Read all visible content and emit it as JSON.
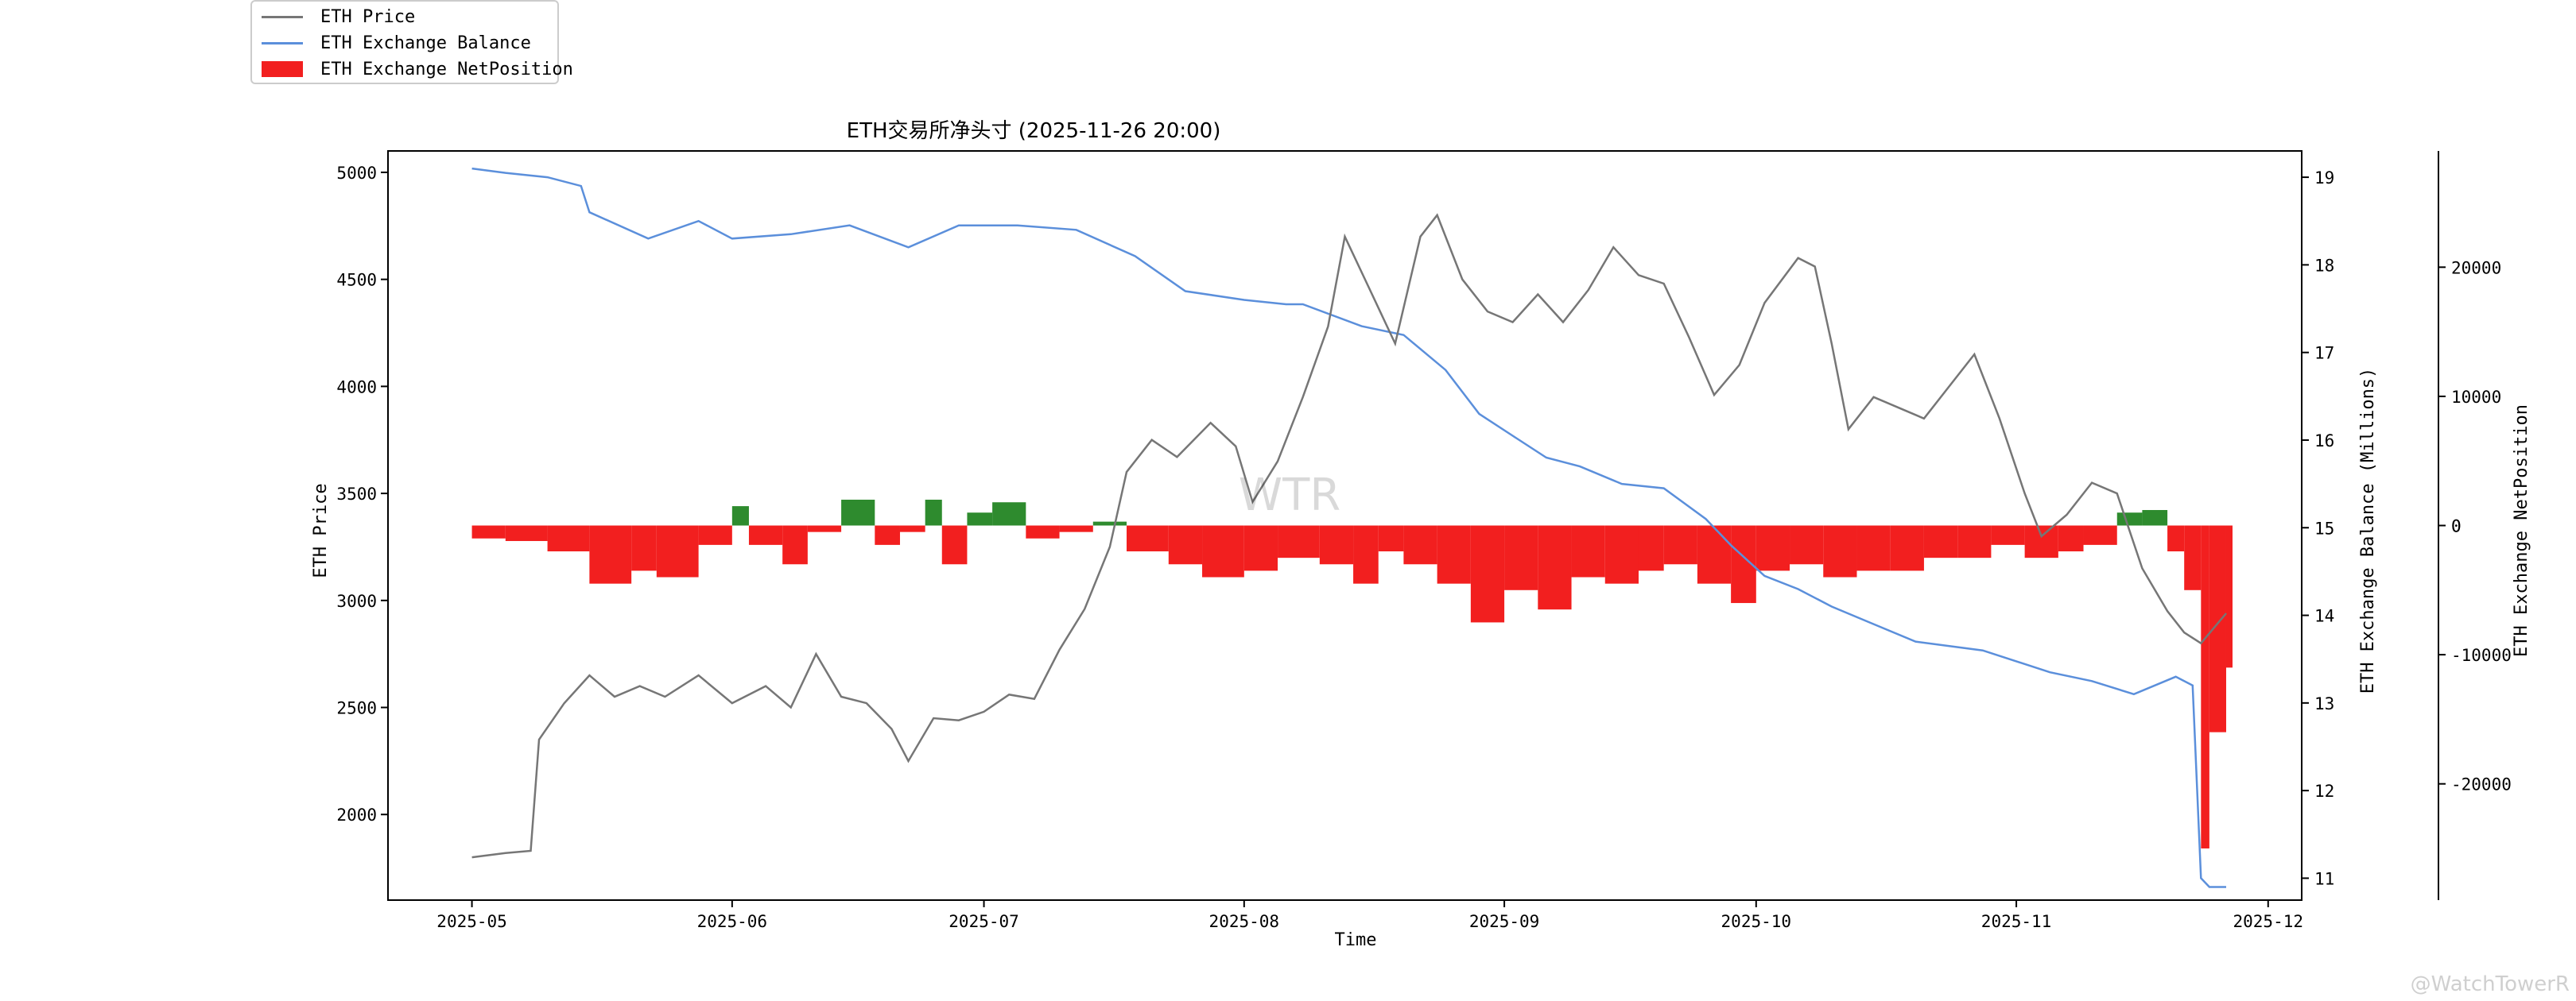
{
  "chart_data": {
    "type": "line",
    "title": "ETH交易所净头寸 (2025-11-26 20:00)",
    "xlabel": "Time",
    "ylabel_left": "ETH Price",
    "ylabel_right1": "ETH Exchange Balance (Millions)",
    "ylabel_right2": "ETH Exchange NetPosition",
    "x_tick_labels": [
      "2025-05",
      "2025-06",
      "2025-07",
      "2025-08",
      "2025-09",
      "2025-10",
      "2025-11",
      "2025-12"
    ],
    "y_left_ticks": [
      2000,
      2500,
      3000,
      3500,
      4000,
      4500,
      5000
    ],
    "y_left_lim": [
      1600,
      5100
    ],
    "y_right1_ticks": [
      11,
      12,
      13,
      14,
      15,
      16,
      17,
      18,
      19
    ],
    "y_right1_lim": [
      10.75,
      19.3
    ],
    "y_right2_ticks": [
      -20000,
      -10000,
      0,
      10000,
      20000
    ],
    "y_right2_lim": [
      -29000,
      29000
    ],
    "x_lim": [
      "2025-04-21",
      "2025-12-05"
    ],
    "watermark": "WTR",
    "footer_watermark": "@WatchTowerR",
    "legend_position": "top-left",
    "colors": {
      "price": "#767676",
      "balance": "#5b8fdb",
      "net_negative": "#f21f1f",
      "net_positive": "#2e8b2e"
    },
    "series": [
      {
        "name": "ETH Price",
        "axis": "left",
        "x": [
          "2025-05-01",
          "2025-05-05",
          "2025-05-08",
          "2025-05-09",
          "2025-05-12",
          "2025-05-15",
          "2025-05-18",
          "2025-05-21",
          "2025-05-24",
          "2025-05-28",
          "2025-06-01",
          "2025-06-05",
          "2025-06-08",
          "2025-06-11",
          "2025-06-14",
          "2025-06-17",
          "2025-06-20",
          "2025-06-22",
          "2025-06-25",
          "2025-06-28",
          "2025-07-01",
          "2025-07-04",
          "2025-07-07",
          "2025-07-10",
          "2025-07-13",
          "2025-07-16",
          "2025-07-18",
          "2025-07-21",
          "2025-07-24",
          "2025-07-28",
          "2025-07-31",
          "2025-08-02",
          "2025-08-05",
          "2025-08-08",
          "2025-08-11",
          "2025-08-13",
          "2025-08-16",
          "2025-08-19",
          "2025-08-22",
          "2025-08-24",
          "2025-08-27",
          "2025-08-30",
          "2025-09-02",
          "2025-09-05",
          "2025-09-08",
          "2025-09-11",
          "2025-09-14",
          "2025-09-17",
          "2025-09-20",
          "2025-09-23",
          "2025-09-26",
          "2025-09-29",
          "2025-10-02",
          "2025-10-06",
          "2025-10-08",
          "2025-10-10",
          "2025-10-12",
          "2025-10-15",
          "2025-10-18",
          "2025-10-21",
          "2025-10-24",
          "2025-10-27",
          "2025-10-30",
          "2025-11-02",
          "2025-11-04",
          "2025-11-07",
          "2025-11-10",
          "2025-11-13",
          "2025-11-16",
          "2025-11-19",
          "2025-11-21",
          "2025-11-23",
          "2025-11-26"
        ],
        "values": [
          1800,
          1820,
          1830,
          2350,
          2520,
          2650,
          2550,
          2600,
          2550,
          2650,
          2520,
          2600,
          2500,
          2750,
          2550,
          2520,
          2400,
          2250,
          2450,
          2440,
          2480,
          2560,
          2540,
          2770,
          2960,
          3250,
          3600,
          3750,
          3670,
          3830,
          3720,
          3460,
          3650,
          3950,
          4280,
          4700,
          4450,
          4200,
          4700,
          4800,
          4500,
          4350,
          4300,
          4430,
          4300,
          4450,
          4650,
          4520,
          4480,
          4230,
          3960,
          4100,
          4390,
          4600,
          4560,
          4200,
          3800,
          3950,
          3900,
          3850,
          4000,
          4150,
          3850,
          3500,
          3300,
          3400,
          3550,
          3500,
          3150,
          2950,
          2850,
          2800,
          2940
        ]
      },
      {
        "name": "ETH Exchange Balance",
        "axis": "right1",
        "x": [
          "2025-05-01",
          "2025-05-05",
          "2025-05-10",
          "2025-05-14",
          "2025-05-15",
          "2025-05-22",
          "2025-05-28",
          "2025-06-01",
          "2025-06-08",
          "2025-06-15",
          "2025-06-22",
          "2025-06-28",
          "2025-07-05",
          "2025-07-12",
          "2025-07-19",
          "2025-07-25",
          "2025-08-01",
          "2025-08-06",
          "2025-08-08",
          "2025-08-15",
          "2025-08-20",
          "2025-08-25",
          "2025-08-29",
          "2025-09-02",
          "2025-09-06",
          "2025-09-10",
          "2025-09-15",
          "2025-09-20",
          "2025-09-25",
          "2025-09-28",
          "2025-10-02",
          "2025-10-06",
          "2025-10-10",
          "2025-10-15",
          "2025-10-20",
          "2025-10-28",
          "2025-11-05",
          "2025-11-10",
          "2025-11-15",
          "2025-11-20",
          "2025-11-22",
          "2025-11-23",
          "2025-11-24",
          "2025-11-26"
        ],
        "values": [
          19.1,
          19.05,
          19.0,
          18.9,
          18.6,
          18.3,
          18.5,
          18.3,
          18.35,
          18.45,
          18.2,
          18.45,
          18.45,
          18.4,
          18.1,
          17.7,
          17.6,
          17.55,
          17.55,
          17.3,
          17.2,
          16.8,
          16.3,
          16.05,
          15.8,
          15.7,
          15.5,
          15.45,
          15.1,
          14.8,
          14.45,
          14.3,
          14.1,
          13.9,
          13.7,
          13.6,
          13.35,
          13.25,
          13.1,
          13.3,
          13.2,
          11.0,
          10.9,
          10.9
        ]
      },
      {
        "name": "ETH Exchange NetPosition",
        "axis": "right2",
        "x": [
          "2025-05-01",
          "2025-05-05",
          "2025-05-10",
          "2025-05-15",
          "2025-05-20",
          "2025-05-23",
          "2025-05-28",
          "2025-06-01",
          "2025-06-03",
          "2025-06-07",
          "2025-06-10",
          "2025-06-14",
          "2025-06-18",
          "2025-06-21",
          "2025-06-24",
          "2025-06-26",
          "2025-06-29",
          "2025-07-02",
          "2025-07-06",
          "2025-07-10",
          "2025-07-14",
          "2025-07-18",
          "2025-07-23",
          "2025-07-27",
          "2025-08-01",
          "2025-08-05",
          "2025-08-10",
          "2025-08-14",
          "2025-08-17",
          "2025-08-20",
          "2025-08-24",
          "2025-08-28",
          "2025-09-01",
          "2025-09-05",
          "2025-09-09",
          "2025-09-13",
          "2025-09-17",
          "2025-09-20",
          "2025-09-24",
          "2025-09-28",
          "2025-10-01",
          "2025-10-05",
          "2025-10-09",
          "2025-10-13",
          "2025-10-17",
          "2025-10-21",
          "2025-10-25",
          "2025-10-29",
          "2025-11-02",
          "2025-11-06",
          "2025-11-09",
          "2025-11-13",
          "2025-11-16",
          "2025-11-19",
          "2025-11-21",
          "2025-11-23",
          "2025-11-24",
          "2025-11-26"
        ],
        "values": [
          -1000,
          -1200,
          -2000,
          -4500,
          -3500,
          -4000,
          -1500,
          1500,
          -1500,
          -3000,
          -500,
          2000,
          -1500,
          -500,
          2000,
          -3000,
          1000,
          1800,
          -1000,
          -500,
          300,
          -2000,
          -3000,
          -4000,
          -3500,
          -2500,
          -3000,
          -4500,
          -2000,
          -3000,
          -4500,
          -7500,
          -5000,
          -6500,
          -4000,
          -4500,
          -3500,
          -3000,
          -4500,
          -6000,
          -3500,
          -3000,
          -4000,
          -3500,
          -3500,
          -2500,
          -2500,
          -1500,
          -2500,
          -2000,
          -1500,
          1000,
          1200,
          -2000,
          -5000,
          -25000,
          -16000,
          -11000
        ]
      }
    ]
  }
}
